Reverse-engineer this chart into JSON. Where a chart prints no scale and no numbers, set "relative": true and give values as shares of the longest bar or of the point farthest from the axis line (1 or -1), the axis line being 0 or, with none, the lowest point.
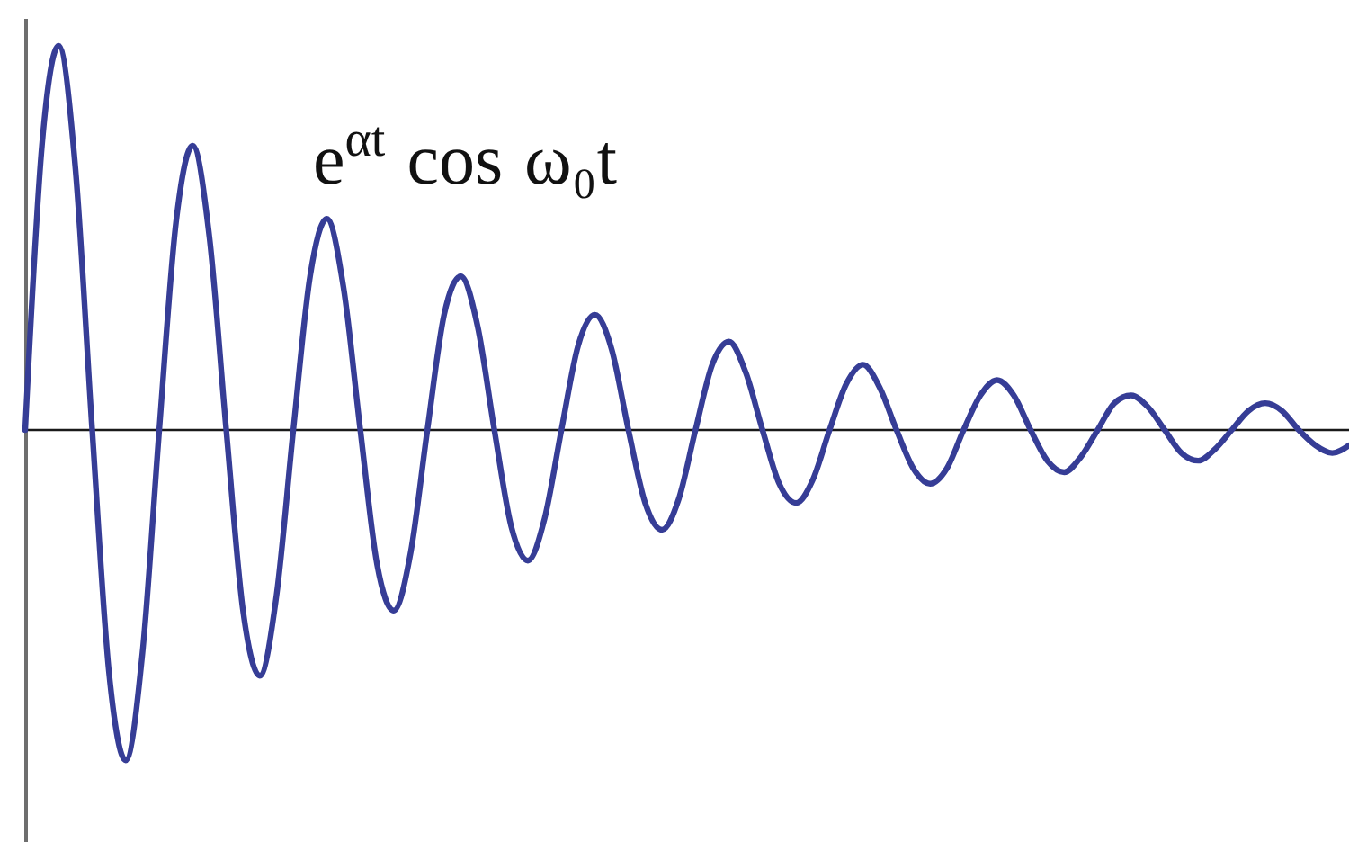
{
  "chart_data": {
    "type": "line",
    "relative": true,
    "categories": [
      null,
      null,
      null,
      null,
      null,
      null,
      null,
      null,
      null,
      null,
      null,
      null,
      null,
      null,
      null,
      null,
      null,
      null,
      null,
      null,
      null,
      null,
      null,
      null,
      null,
      null,
      null,
      null,
      null,
      null,
      null,
      null,
      null,
      null,
      null,
      null,
      null,
      null,
      null,
      null,
      null,
      null,
      null,
      null,
      null,
      null,
      null,
      null,
      null,
      null,
      null,
      null,
      null,
      null,
      null,
      null,
      null,
      null,
      null,
      null,
      null,
      null,
      null,
      null,
      null,
      null,
      null,
      null,
      null,
      null,
      null,
      null,
      null,
      null,
      null,
      null,
      null,
      null,
      null,
      null
    ],
    "series": [
      {
        "color": "#363d96",
        "values": [
          0,
          0.74,
          1,
          0.68,
          0,
          -0.63,
          -0.86,
          -0.58,
          0,
          0.54,
          0.74,
          0.5,
          0,
          -0.47,
          -0.64,
          -0.43,
          0,
          0.4,
          0.55,
          0.37,
          0,
          -0.35,
          -0.47,
          -0.32,
          0,
          0.3,
          0.4,
          0.27,
          0,
          -0.25,
          -0.34,
          -0.23,
          0,
          0.22,
          0.3,
          0.21,
          0,
          -0.19,
          -0.26,
          -0.18,
          0,
          0.17,
          0.23,
          0.15,
          0,
          -0.14,
          -0.19,
          -0.13,
          0,
          0.12,
          0.17,
          0.11,
          0,
          -0.1,
          -0.14,
          -0.1,
          0,
          0.09,
          0.13,
          0.09,
          0,
          -0.08,
          -0.11,
          -0.07,
          0,
          0.07,
          0.09,
          0.06,
          0,
          -0.06,
          -0.08,
          -0.05,
          0,
          0.05,
          0.07,
          0.05,
          0,
          -0.04,
          -0.06,
          -0.04
        ]
      }
    ],
    "annotations": [
      "e$^{αt}$ cos ω₀t"
    ]
  }
}
